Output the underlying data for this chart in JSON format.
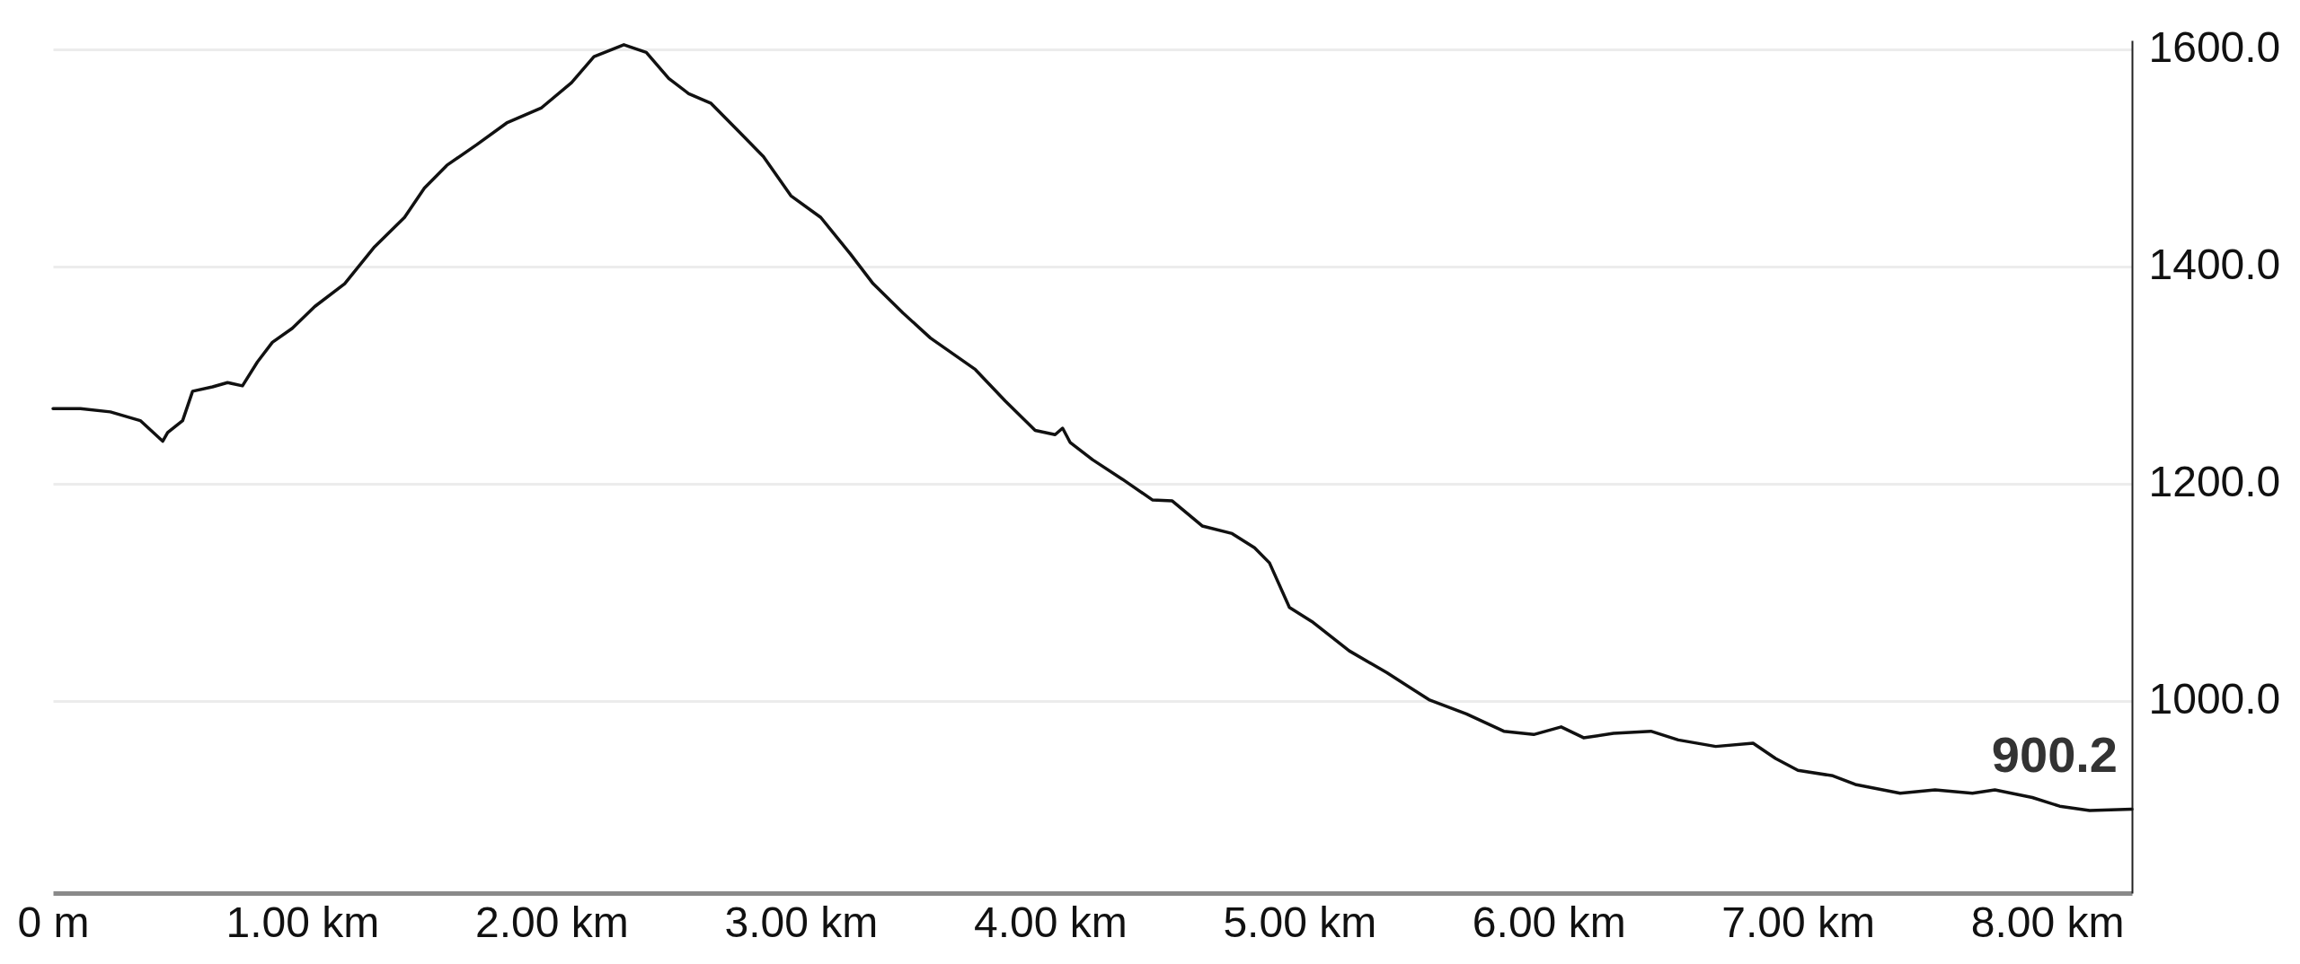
{
  "chart_data": {
    "type": "line",
    "x": [
      0,
      0.11,
      0.23,
      0.35,
      0.44,
      0.46,
      0.52,
      0.56,
      0.64,
      0.7,
      0.76,
      0.82,
      0.88,
      0.96,
      1.05,
      1.17,
      1.29,
      1.41,
      1.49,
      1.58,
      1.7,
      1.82,
      1.96,
      2.08,
      2.17,
      2.29,
      2.38,
      2.47,
      2.55,
      2.64,
      2.76,
      2.85,
      2.96,
      3.08,
      3.2,
      3.29,
      3.41,
      3.52,
      3.7,
      3.82,
      3.94,
      4.02,
      4.05,
      4.08,
      4.17,
      4.29,
      4.41,
      4.49,
      4.61,
      4.73,
      4.82,
      4.88,
      4.96,
      5.05,
      5.2,
      5.35,
      5.52,
      5.67,
      5.82,
      5.94,
      6.05,
      6.14,
      6.26,
      6.41,
      6.52,
      6.67,
      6.82,
      6.91,
      7.0,
      7.14,
      7.23,
      7.41,
      7.55,
      7.7,
      7.79,
      7.94,
      8.05,
      8.17,
      8.34
    ],
    "series": [
      {
        "color": "#111111",
        "values": [
          1269,
          1269,
          1266,
          1258,
          1239,
          1247,
          1258,
          1285,
          1289,
          1293,
          1290,
          1312,
          1330,
          1343,
          1363,
          1384,
          1418,
          1445,
          1472,
          1493,
          1512,
          1532,
          1546,
          1569,
          1593,
          1604,
          1597,
          1573,
          1559,
          1550,
          1522,
          1501,
          1465,
          1445,
          1411,
          1384,
          1357,
          1334,
          1305,
          1276,
          1249,
          1245,
          1251,
          1238,
          1222,
          1204,
          1185,
          1184,
          1161,
          1154,
          1141,
          1127,
          1086,
          1073,
          1046,
          1026,
          1001,
          988,
          972,
          969,
          976,
          966,
          970,
          972,
          964,
          958,
          961,
          947,
          936,
          931,
          923,
          915,
          918,
          915,
          918,
          911,
          903,
          899,
          900.2
        ]
      }
    ],
    "xlim": [
      0,
      8.34
    ],
    "xticks": [
      {
        "value": 0,
        "label": "0 m"
      },
      {
        "value": 1,
        "label": "1.00 km"
      },
      {
        "value": 2,
        "label": "2.00 km"
      },
      {
        "value": 3,
        "label": "3.00 km"
      },
      {
        "value": 4,
        "label": "4.00 km"
      },
      {
        "value": 5,
        "label": "5.00 km"
      },
      {
        "value": 6,
        "label": "6.00 km"
      },
      {
        "value": 7,
        "label": "7.00 km"
      },
      {
        "value": 8,
        "label": "8.00 km"
      }
    ],
    "ylim": [
      823,
      1608
    ],
    "yticks": [
      {
        "value": 1000,
        "label": "1000.0"
      },
      {
        "value": 1200,
        "label": "1200.0"
      },
      {
        "value": 1400,
        "label": "1400.0"
      },
      {
        "value": 1600,
        "label": "1600.0"
      }
    ],
    "grid": "y",
    "marker": "none",
    "line_style": "solid",
    "annotations": [
      {
        "text": "900.2",
        "x": 8.34,
        "y": 900.2
      }
    ]
  }
}
